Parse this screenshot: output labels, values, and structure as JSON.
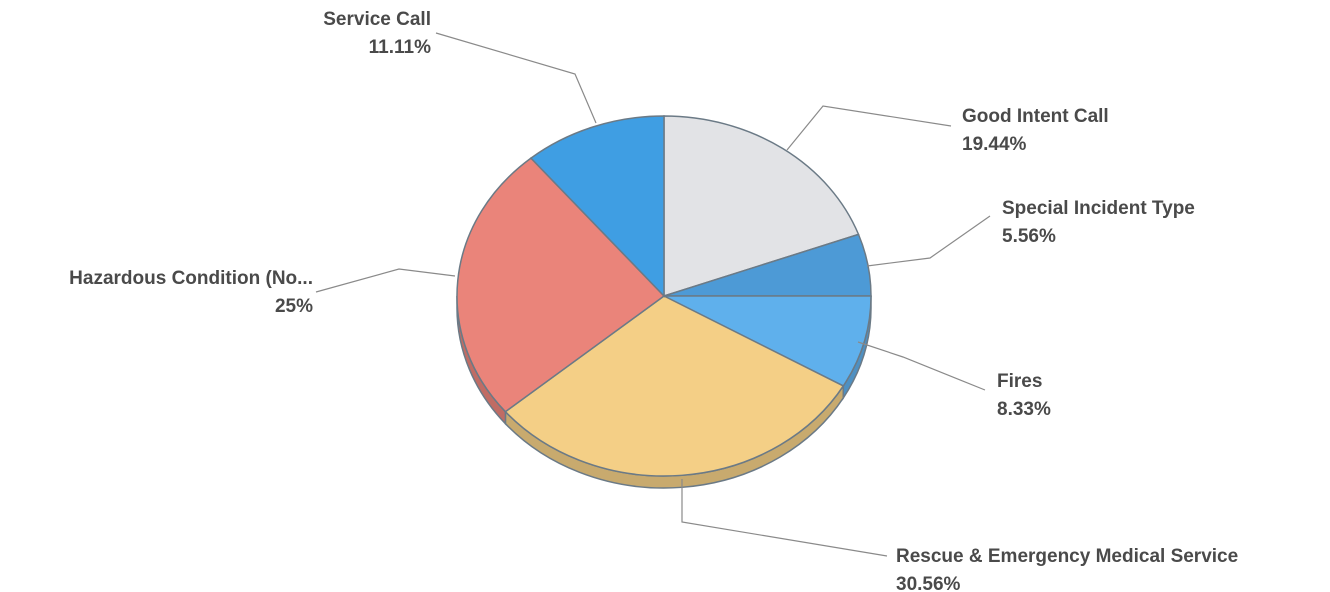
{
  "chart_data": {
    "type": "pie",
    "title": "",
    "slices": [
      {
        "label": "Good Intent Call",
        "value": 19.44,
        "value_label": "19.44%",
        "color": "#e2e3e6"
      },
      {
        "label": "Special Incident Type",
        "value": 5.56,
        "value_label": "5.56%",
        "color": "#4d9ad6"
      },
      {
        "label": "Fires",
        "value": 8.33,
        "value_label": "8.33%",
        "color": "#5fb0ec"
      },
      {
        "label": "Rescue & Emergency Medical Service",
        "value": 30.56,
        "value_label": "30.56%",
        "color": "#f4cf86"
      },
      {
        "label": "Hazardous Condition (No...",
        "value": 25,
        "value_label": "25%",
        "color": "#ea847a"
      },
      {
        "label": "Service Call",
        "value": 11.11,
        "value_label": "11.11%",
        "color": "#3f9ee3"
      }
    ],
    "start_position": "12 o'clock",
    "direction": "clockwise",
    "legend": "none",
    "style": "3d-tilted"
  }
}
